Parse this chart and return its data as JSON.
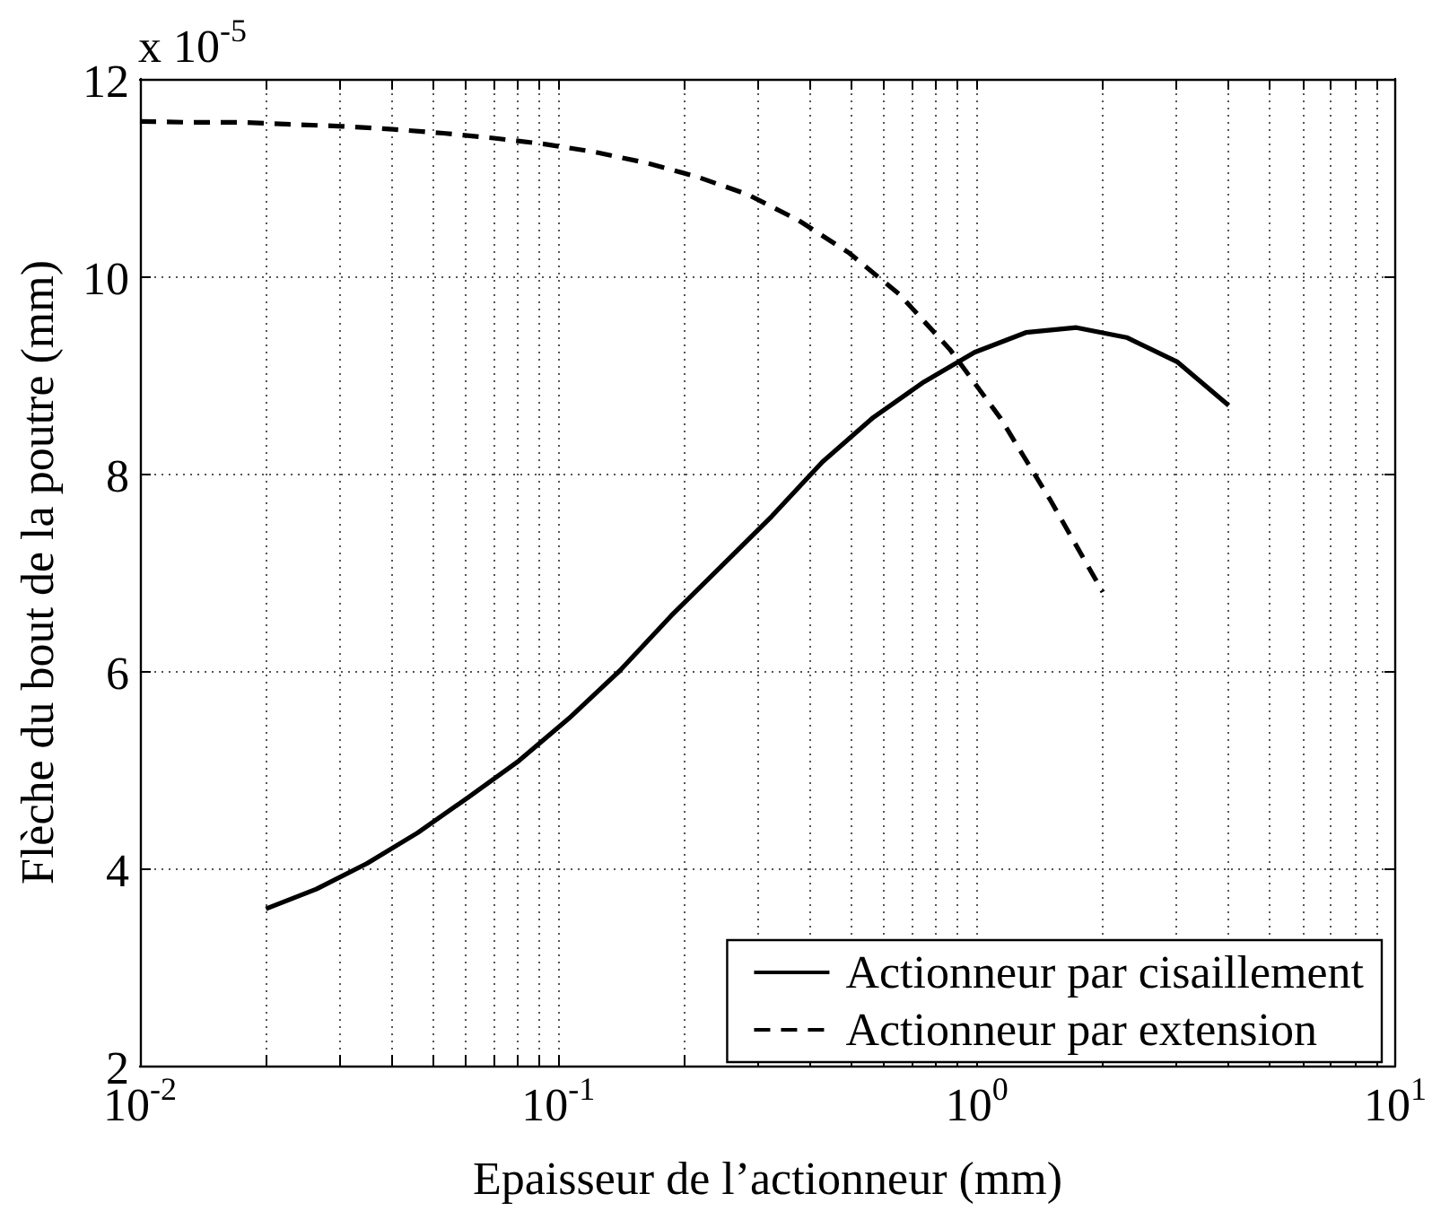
{
  "chart_data": {
    "type": "line",
    "xlabel": "Epaisseur de l’actionneur (mm)",
    "ylabel": "Flèche du bout de la poutre (mm)",
    "annotations": [
      "x 10$^{-5}$"
    ],
    "log": "x",
    "xlim": [
      0.01,
      10
    ],
    "xticks": [
      {
        "value": 0.01,
        "label": "10$^{-2}$"
      },
      {
        "value": 0.02,
        "label": null
      },
      {
        "value": 0.03,
        "label": null
      },
      {
        "value": 0.04,
        "label": null
      },
      {
        "value": 0.05,
        "label": null
      },
      {
        "value": 0.06,
        "label": null
      },
      {
        "value": 0.07,
        "label": null
      },
      {
        "value": 0.08,
        "label": null
      },
      {
        "value": 0.09,
        "label": null
      },
      {
        "value": 0.1,
        "label": "10$^{-1}$"
      },
      {
        "value": 0.2,
        "label": null
      },
      {
        "value": 0.3,
        "label": null
      },
      {
        "value": 0.4,
        "label": null
      },
      {
        "value": 0.5,
        "label": null
      },
      {
        "value": 0.6,
        "label": null
      },
      {
        "value": 0.7,
        "label": null
      },
      {
        "value": 0.8,
        "label": null
      },
      {
        "value": 0.9,
        "label": null
      },
      {
        "value": 1,
        "label": "10$^{0}$"
      },
      {
        "value": 2,
        "label": null
      },
      {
        "value": 3,
        "label": null
      },
      {
        "value": 4,
        "label": null
      },
      {
        "value": 5,
        "label": null
      },
      {
        "value": 6,
        "label": null
      },
      {
        "value": 7,
        "label": null
      },
      {
        "value": 8,
        "label": null
      },
      {
        "value": 9,
        "label": null
      },
      {
        "value": 10,
        "label": "10$^{1}$"
      }
    ],
    "ylim": [
      2,
      12
    ],
    "yticks": [
      2,
      4,
      6,
      8,
      10,
      12
    ],
    "grid": true,
    "legend": "bottom right",
    "series": [
      {
        "name": "Actionneur par cisaillement",
        "color": "#000000",
        "line_style": "solid",
        "x": [
          0.02,
          0.0264,
          0.0349,
          0.0461,
          0.0609,
          0.0805,
          0.106,
          0.14,
          0.186,
          0.245,
          0.324,
          0.428,
          0.566,
          0.748,
          0.988,
          1.31,
          1.73,
          2.28,
          3.02,
          4
        ],
        "values": [
          3.59,
          3.79,
          4.05,
          4.36,
          4.72,
          5.09,
          5.52,
          6.0,
          6.56,
          7.06,
          7.57,
          8.12,
          8.57,
          8.93,
          9.23,
          9.43,
          9.48,
          9.38,
          9.13,
          8.69
        ]
      },
      {
        "name": "Actionneur par extension",
        "color": "#000000",
        "line_style": "dashed",
        "x": [
          0.01,
          0.0132,
          0.0174,
          0.023,
          0.0304,
          0.0402,
          0.0531,
          0.0701,
          0.0926,
          0.122,
          0.162,
          0.214,
          0.283,
          0.374,
          0.494,
          0.652,
          0.862,
          1.14,
          1.5,
          2
        ],
        "values": [
          11.57,
          11.56,
          11.56,
          11.54,
          11.52,
          11.49,
          11.45,
          11.4,
          11.34,
          11.26,
          11.15,
          11.01,
          10.83,
          10.57,
          10.24,
          9.82,
          9.26,
          8.56,
          7.73,
          6.8
        ]
      }
    ]
  }
}
